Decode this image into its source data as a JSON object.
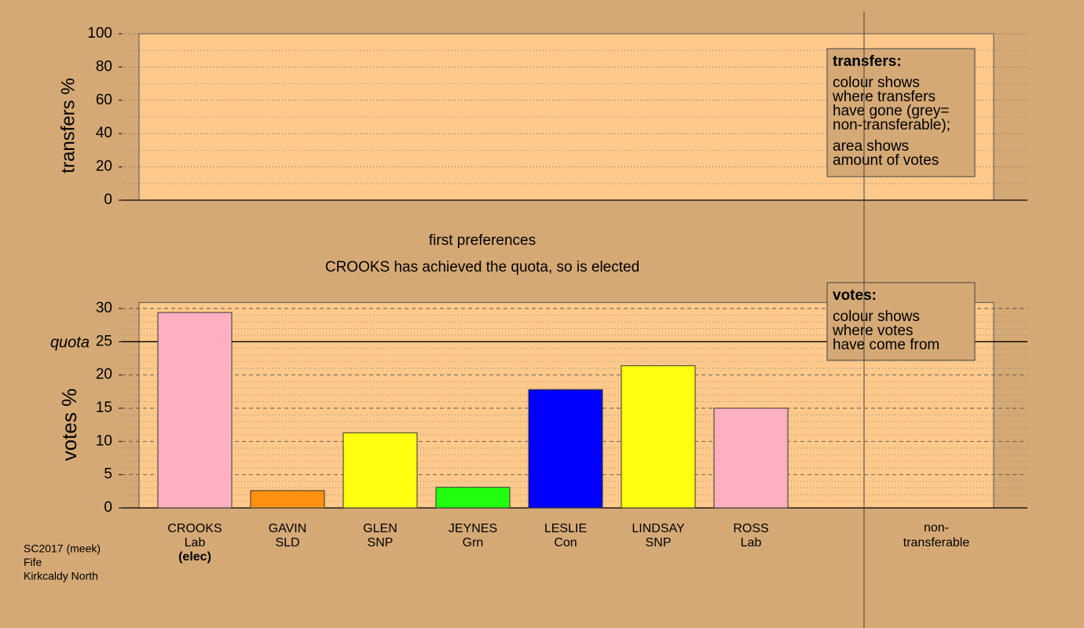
{
  "chart_data": [
    {
      "type": "bar",
      "ylabel": "transfers %",
      "ylim": [
        0,
        100
      ],
      "yticks": [
        0,
        20,
        40,
        60,
        80,
        100
      ],
      "minor_grid": [
        10,
        30,
        50,
        70,
        90
      ],
      "grid": true,
      "categories": [],
      "series": [],
      "legend": {
        "title": "transfers:",
        "paragraphs": [
          [
            "colour shows",
            "where transfers",
            "have gone (grey=",
            "non-transferable);"
          ],
          [
            "area shows",
            "amount of votes"
          ]
        ]
      }
    },
    {
      "type": "bar",
      "title": "first preferences",
      "subtitle": "CROOKS has achieved the quota, so is elected",
      "ylabel": "votes %",
      "ylim": [
        0,
        30.9
      ],
      "yticks": [
        0,
        5,
        10,
        15,
        20,
        25,
        30
      ],
      "minor_grid": [
        1,
        2,
        3,
        4,
        6,
        7,
        8,
        9,
        11,
        12,
        13,
        14,
        16,
        17,
        18,
        19,
        21,
        22,
        23,
        24,
        26,
        27,
        28,
        29
      ],
      "grid": true,
      "quota": {
        "value": 25,
        "label": "quota"
      },
      "categories": [
        "CROOKS",
        "GAVIN",
        "GLEN",
        "JEYNES",
        "LESLIE",
        "LINDSAY",
        "ROSS",
        "non-transferable"
      ],
      "parties": [
        "Lab",
        "SLD",
        "SNP",
        "Grn",
        "Con",
        "SNP",
        "Lab",
        null
      ],
      "status": [
        "(elec)",
        null,
        null,
        null,
        null,
        null,
        null,
        null
      ],
      "series": [
        {
          "values": [
            29.4,
            2.6,
            11.3,
            3.1,
            17.8,
            21.4,
            15.0,
            null
          ],
          "colors": [
            "#ffb0c0",
            "#ff9010",
            "#ffff10",
            "#20ff10",
            "#0000ff",
            "#ffff10",
            "#ffb0c0",
            null
          ]
        }
      ],
      "legend": {
        "title": "votes:",
        "paragraphs": [
          [
            "colour shows",
            "where votes",
            "have come from"
          ]
        ]
      }
    }
  ],
  "footer": [
    "SC2017 (meek)",
    "Fife",
    "Kirkcaldy North"
  ]
}
